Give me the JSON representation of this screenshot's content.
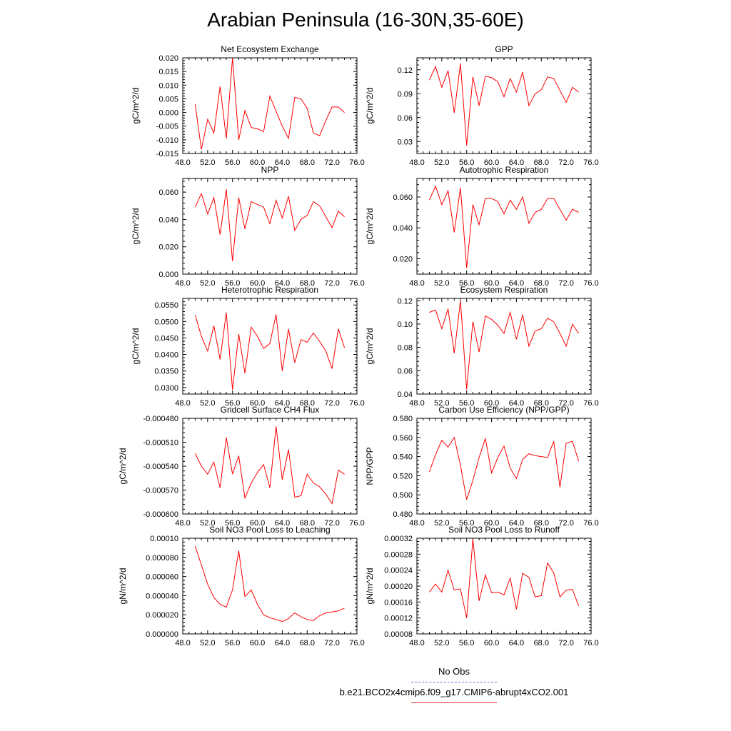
{
  "title": "Arabian Peninsula (16-30N,35-60E)",
  "legend": {
    "obs_label": "No Obs",
    "model_label": "b.e21.BCO2x4cmip6.f09_g17.CMIP6-abrupt4xCO2.001"
  },
  "colors": {
    "series": "#ff0000",
    "obs": "#6a6ad8",
    "axis": "#000000"
  },
  "chart_data": [
    {
      "type": "line",
      "title": "Net Ecosystem Exchange",
      "ylabel": "gC/m^2/d",
      "xlim": [
        48,
        76
      ],
      "ylim": [
        -0.015,
        0.02
      ],
      "xticks": [
        "48.0",
        "52.0",
        "56.0",
        "60.0",
        "64.0",
        "68.0",
        "72.0",
        "76.0"
      ],
      "yticks": [
        "-0.015",
        "-0.010",
        "-0.005",
        "0.000",
        "0.005",
        "0.010",
        "0.015",
        "0.020"
      ],
      "x": [
        50,
        51,
        52,
        53,
        54,
        55,
        56,
        57,
        58,
        59,
        60,
        61,
        62,
        63,
        64,
        65,
        66,
        67,
        68,
        69,
        70,
        71,
        72,
        73,
        74
      ],
      "series": [
        {
          "values": [
            0.003,
            -0.0135,
            -0.0025,
            -0.0075,
            0.0095,
            -0.0095,
            0.02,
            -0.01,
            0.0007,
            -0.0055,
            -0.006,
            -0.007,
            0.006,
            0.0005,
            -0.005,
            -0.0095,
            0.0055,
            0.005,
            0.0015,
            -0.0075,
            -0.0085,
            -0.003,
            0.002,
            0.002,
            0.0
          ]
        }
      ]
    },
    {
      "type": "line",
      "title": "GPP",
      "ylabel": "gC/m^2/d",
      "xlim": [
        48,
        76
      ],
      "ylim": [
        0.015,
        0.135
      ],
      "xticks": [
        "48.0",
        "52.0",
        "56.0",
        "60.0",
        "64.0",
        "68.0",
        "72.0",
        "76.0"
      ],
      "yticks": [
        "0.03",
        "0.06",
        "0.09",
        "0.12"
      ],
      "x": [
        50,
        51,
        52,
        53,
        54,
        55,
        56,
        57,
        58,
        59,
        60,
        61,
        62,
        63,
        64,
        65,
        66,
        67,
        68,
        69,
        70,
        71,
        72,
        73,
        74
      ],
      "series": [
        {
          "values": [
            0.107,
            0.124,
            0.098,
            0.119,
            0.066,
            0.128,
            0.025,
            0.111,
            0.075,
            0.112,
            0.11,
            0.105,
            0.086,
            0.109,
            0.092,
            0.117,
            0.075,
            0.09,
            0.095,
            0.111,
            0.109,
            0.094,
            0.079,
            0.098,
            0.092
          ]
        }
      ]
    },
    {
      "type": "line",
      "title": "NPP",
      "ylabel": "gC/m^2/d",
      "xlim": [
        48,
        76
      ],
      "ylim": [
        0.0,
        0.07
      ],
      "xticks": [
        "48.0",
        "52.0",
        "56.0",
        "60.0",
        "64.0",
        "68.0",
        "72.0",
        "76.0"
      ],
      "yticks": [
        "0.000",
        "0.020",
        "0.040",
        "0.060"
      ],
      "x": [
        50,
        51,
        52,
        53,
        54,
        55,
        56,
        57,
        58,
        59,
        60,
        61,
        62,
        63,
        64,
        65,
        66,
        67,
        68,
        69,
        70,
        71,
        72,
        73,
        74
      ],
      "series": [
        {
          "values": [
            0.049,
            0.059,
            0.044,
            0.056,
            0.029,
            0.062,
            0.0095,
            0.056,
            0.033,
            0.053,
            0.051,
            0.049,
            0.037,
            0.054,
            0.041,
            0.057,
            0.032,
            0.04,
            0.043,
            0.053,
            0.05,
            0.042,
            0.034,
            0.046,
            0.042
          ]
        }
      ]
    },
    {
      "type": "line",
      "title": "Autotrophic Respiration",
      "ylabel": "gC/m^2/d",
      "xlim": [
        48,
        76
      ],
      "ylim": [
        0.01,
        0.072
      ],
      "xticks": [
        "48.0",
        "52.0",
        "56.0",
        "60.0",
        "64.0",
        "68.0",
        "72.0",
        "76.0"
      ],
      "yticks": [
        "0.020",
        "0.040",
        "0.060"
      ],
      "x": [
        50,
        51,
        52,
        53,
        54,
        55,
        56,
        57,
        58,
        59,
        60,
        61,
        62,
        63,
        64,
        65,
        66,
        67,
        68,
        69,
        70,
        71,
        72,
        73,
        74
      ],
      "series": [
        {
          "values": [
            0.058,
            0.067,
            0.055,
            0.064,
            0.037,
            0.066,
            0.014,
            0.055,
            0.042,
            0.059,
            0.059,
            0.057,
            0.049,
            0.058,
            0.052,
            0.06,
            0.043,
            0.05,
            0.052,
            0.059,
            0.059,
            0.052,
            0.045,
            0.052,
            0.05
          ]
        }
      ]
    },
    {
      "type": "line",
      "title": "Heterotrophic Respiration",
      "ylabel": "gC/m^2/d",
      "xlim": [
        48,
        76
      ],
      "ylim": [
        0.028,
        0.057
      ],
      "xticks": [
        "48.0",
        "52.0",
        "56.0",
        "60.0",
        "64.0",
        "68.0",
        "72.0",
        "76.0"
      ],
      "yticks": [
        "0.0300",
        "0.0350",
        "0.0400",
        "0.0450",
        "0.0500",
        "0.0550"
      ],
      "x": [
        50,
        51,
        52,
        53,
        54,
        55,
        56,
        57,
        58,
        59,
        60,
        61,
        62,
        63,
        64,
        65,
        66,
        67,
        68,
        69,
        70,
        71,
        72,
        73,
        74
      ],
      "series": [
        {
          "values": [
            0.052,
            0.0455,
            0.041,
            0.0487,
            0.0385,
            0.0527,
            0.0293,
            0.0462,
            0.0343,
            0.0483,
            0.0455,
            0.0418,
            0.0433,
            0.0521,
            0.035,
            0.0477,
            0.0375,
            0.0445,
            0.0437,
            0.0465,
            0.044,
            0.041,
            0.0357,
            0.0478,
            0.042
          ]
        }
      ]
    },
    {
      "type": "line",
      "title": "Ecosystem Respiration",
      "ylabel": "gC/m^2/d",
      "xlim": [
        48,
        76
      ],
      "ylim": [
        0.04,
        0.122
      ],
      "xticks": [
        "48.0",
        "52.0",
        "56.0",
        "60.0",
        "64.0",
        "68.0",
        "72.0",
        "76.0"
      ],
      "yticks": [
        "0.04",
        "0.06",
        "0.08",
        "0.10",
        "0.12"
      ],
      "x": [
        50,
        51,
        52,
        53,
        54,
        55,
        56,
        57,
        58,
        59,
        60,
        61,
        62,
        63,
        64,
        65,
        66,
        67,
        68,
        69,
        70,
        71,
        72,
        73,
        74
      ],
      "series": [
        {
          "values": [
            0.11,
            0.112,
            0.096,
            0.113,
            0.075,
            0.12,
            0.044,
            0.102,
            0.076,
            0.107,
            0.104,
            0.099,
            0.092,
            0.11,
            0.087,
            0.108,
            0.081,
            0.094,
            0.096,
            0.105,
            0.102,
            0.092,
            0.081,
            0.1,
            0.092
          ]
        }
      ]
    },
    {
      "type": "line",
      "title": "Gridcell Surface CH4 Flux",
      "ylabel": "gC/m^2/d",
      "xlim": [
        48,
        76
      ],
      "ylim": [
        -0.0006,
        -0.00048
      ],
      "xticks": [
        "48.0",
        "52.0",
        "56.0",
        "60.0",
        "64.0",
        "68.0",
        "72.0",
        "76.0"
      ],
      "yticks": [
        "-0.000600",
        "-0.000570",
        "-0.000540",
        "-0.000510",
        "-0.000480"
      ],
      "x": [
        50,
        51,
        52,
        53,
        54,
        55,
        56,
        57,
        58,
        59,
        60,
        61,
        62,
        63,
        64,
        65,
        66,
        67,
        68,
        69,
        70,
        71,
        72,
        73,
        74
      ],
      "series": [
        {
          "values": [
            -0.000524,
            -0.00054,
            -0.00055,
            -0.000535,
            -0.000567,
            -0.000504,
            -0.00055,
            -0.000527,
            -0.00058,
            -0.000561,
            -0.000548,
            -0.000538,
            -0.000567,
            -0.00049,
            -0.000557,
            -0.000519,
            -0.000579,
            -0.000577,
            -0.00055,
            -0.000561,
            -0.000566,
            -0.000575,
            -0.000587,
            -0.000545,
            -0.00055
          ]
        }
      ]
    },
    {
      "type": "line",
      "title": "Carbon Use Efficiency (NPP/GPP)",
      "ylabel": "NPP/GPP",
      "xlim": [
        48,
        76
      ],
      "ylim": [
        0.48,
        0.58
      ],
      "xticks": [
        "48.0",
        "52.0",
        "56.0",
        "60.0",
        "64.0",
        "68.0",
        "72.0",
        "76.0"
      ],
      "yticks": [
        "0.480",
        "0.500",
        "0.520",
        "0.540",
        "0.560",
        "0.580"
      ],
      "x": [
        50,
        51,
        52,
        53,
        54,
        55,
        56,
        57,
        58,
        59,
        60,
        61,
        62,
        63,
        64,
        65,
        66,
        67,
        68,
        69,
        70,
        71,
        72,
        73,
        74
      ],
      "series": [
        {
          "values": [
            0.524,
            0.542,
            0.557,
            0.55,
            0.56,
            0.531,
            0.495,
            0.515,
            0.539,
            0.559,
            0.523,
            0.539,
            0.551,
            0.528,
            0.517,
            0.537,
            0.543,
            0.541,
            0.54,
            0.539,
            0.556,
            0.508,
            0.554,
            0.556,
            0.535
          ]
        }
      ]
    },
    {
      "type": "line",
      "title": "Soil NO3 Pool Loss to Leaching",
      "ylabel": "gN/m^2/d",
      "xlim": [
        48,
        76
      ],
      "ylim": [
        0.0,
        0.0001
      ],
      "xticks": [
        "48.0",
        "52.0",
        "56.0",
        "60.0",
        "64.0",
        "68.0",
        "72.0",
        "76.0"
      ],
      "yticks": [
        "0.000000",
        "0.000020",
        "0.000040",
        "0.000060",
        "0.000080",
        "0.00010"
      ],
      "x": [
        50,
        51,
        52,
        53,
        54,
        55,
        56,
        57,
        58,
        59,
        60,
        61,
        62,
        63,
        64,
        65,
        66,
        67,
        68,
        69,
        70,
        71,
        72,
        73,
        74
      ],
      "series": [
        {
          "values": [
            9.2e-05,
            7.2e-05,
            5.2e-05,
            3.8e-05,
            3.1e-05,
            2.8e-05,
            4.6e-05,
            8.7e-05,
            3.9e-05,
            4.6e-05,
            3.1e-05,
            2e-05,
            1.7e-05,
            1.5e-05,
            1.3e-05,
            1.6e-05,
            2.2e-05,
            1.8e-05,
            1.5e-05,
            1.4e-05,
            1.9e-05,
            2.2e-05,
            2.3e-05,
            2.4e-05,
            2.7e-05
          ]
        }
      ]
    },
    {
      "type": "line",
      "title": "Soil NO3 Pool Loss to Runoff",
      "ylabel": "gN/m^2/d",
      "xlim": [
        48,
        76
      ],
      "ylim": [
        8e-05,
        0.00032
      ],
      "xticks": [
        "48.0",
        "52.0",
        "56.0",
        "60.0",
        "64.0",
        "68.0",
        "72.0",
        "76.0"
      ],
      "yticks": [
        "0.00008",
        "0.00012",
        "0.00016",
        "0.00020",
        "0.00024",
        "0.00028",
        "0.00032"
      ],
      "x": [
        50,
        51,
        52,
        53,
        54,
        55,
        56,
        57,
        58,
        59,
        60,
        61,
        62,
        63,
        64,
        65,
        66,
        67,
        68,
        69,
        70,
        71,
        72,
        73,
        74
      ],
      "series": [
        {
          "values": [
            0.000185,
            0.000205,
            0.000185,
            0.00024,
            0.00019,
            0.000193,
            0.00012,
            0.000318,
            0.000163,
            0.000228,
            0.000183,
            0.000185,
            0.000178,
            0.00022,
            0.000142,
            0.000232,
            0.000222,
            0.000173,
            0.000176,
            0.000258,
            0.000233,
            0.000173,
            0.00019,
            0.000192,
            0.00015
          ]
        }
      ]
    }
  ]
}
